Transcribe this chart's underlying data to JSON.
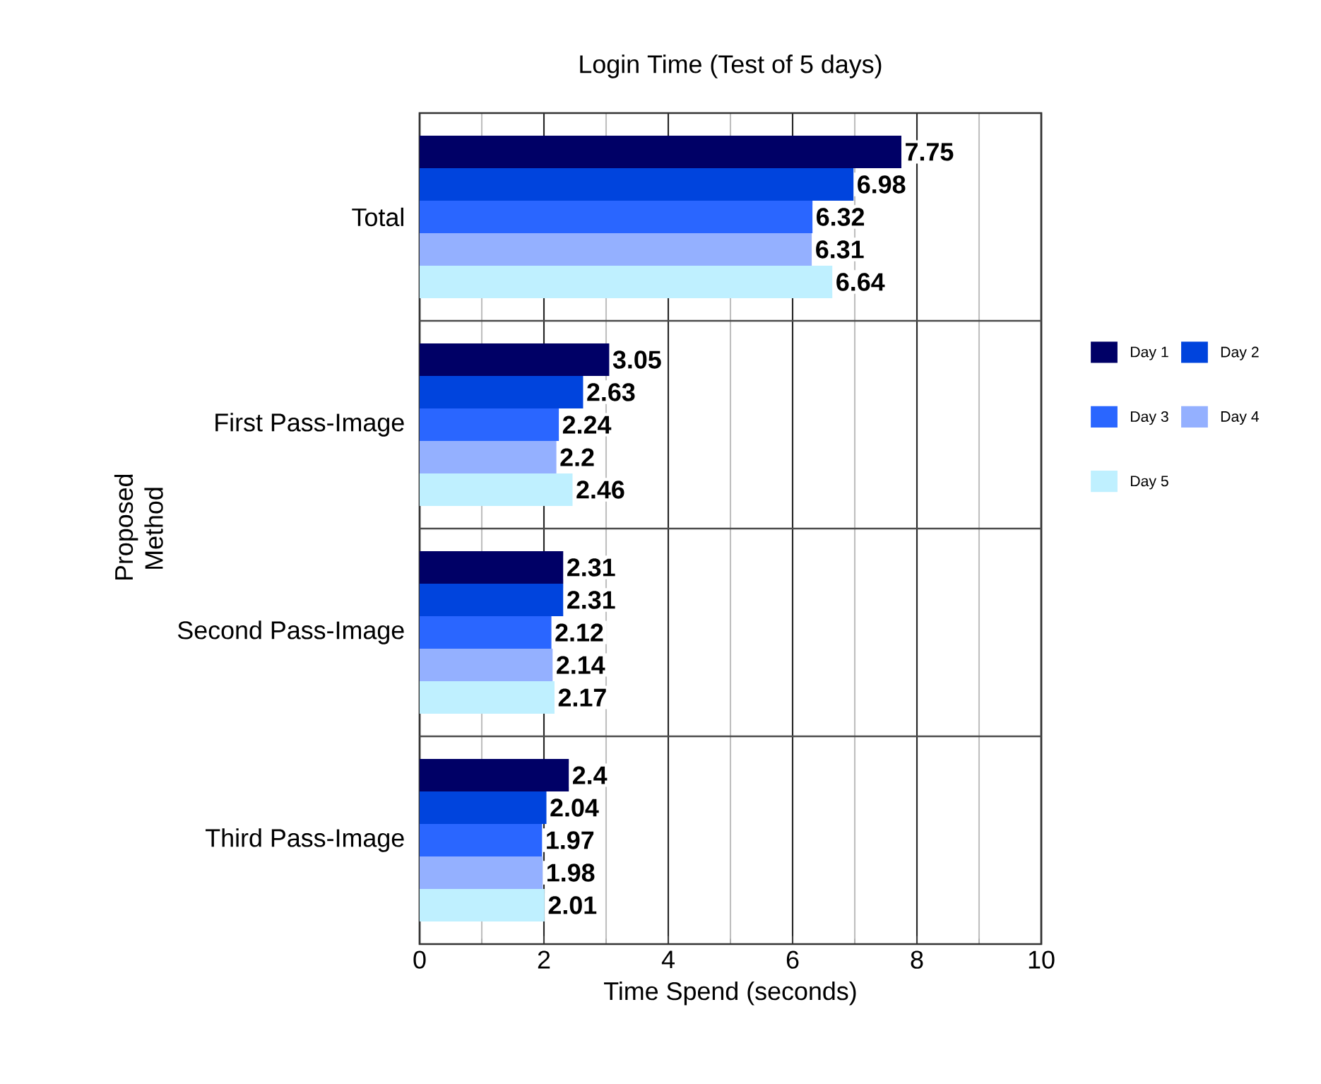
{
  "chart_data": {
    "type": "bar",
    "orientation": "horizontal",
    "title": "Login Time (Test of 5 days)",
    "xlabel": "Time Spend (seconds)",
    "ylabel": "Proposed Method",
    "categories": [
      "Total",
      "First Pass-Image",
      "Second Pass-Image",
      "Third Pass-Image"
    ],
    "series": [
      {
        "name": "Day 1",
        "color": "#000066",
        "values": [
          7.75,
          3.05,
          2.31,
          2.4
        ]
      },
      {
        "name": "Day 2",
        "color": "#0044dd",
        "values": [
          6.98,
          2.63,
          2.31,
          2.04
        ]
      },
      {
        "name": "Day 3",
        "color": "#2a66ff",
        "values": [
          6.32,
          2.24,
          2.12,
          1.97
        ]
      },
      {
        "name": "Day 4",
        "color": "#94b0ff",
        "values": [
          6.31,
          2.2,
          2.14,
          1.98
        ]
      },
      {
        "name": "Day 5",
        "color": "#bff0ff",
        "values": [
          6.64,
          2.46,
          2.17,
          2.01
        ]
      }
    ],
    "xlim": [
      0,
      10
    ],
    "xticks": [
      0,
      {
        "value": 1,
        "label": null
      },
      2,
      {
        "value": 3,
        "label": null
      },
      4,
      {
        "value": 5,
        "label": null
      },
      6,
      {
        "value": 7,
        "label": null
      },
      8,
      {
        "value": 9,
        "label": null
      },
      10
    ],
    "grid": "x",
    "legend": "right",
    "data_labels": true
  }
}
